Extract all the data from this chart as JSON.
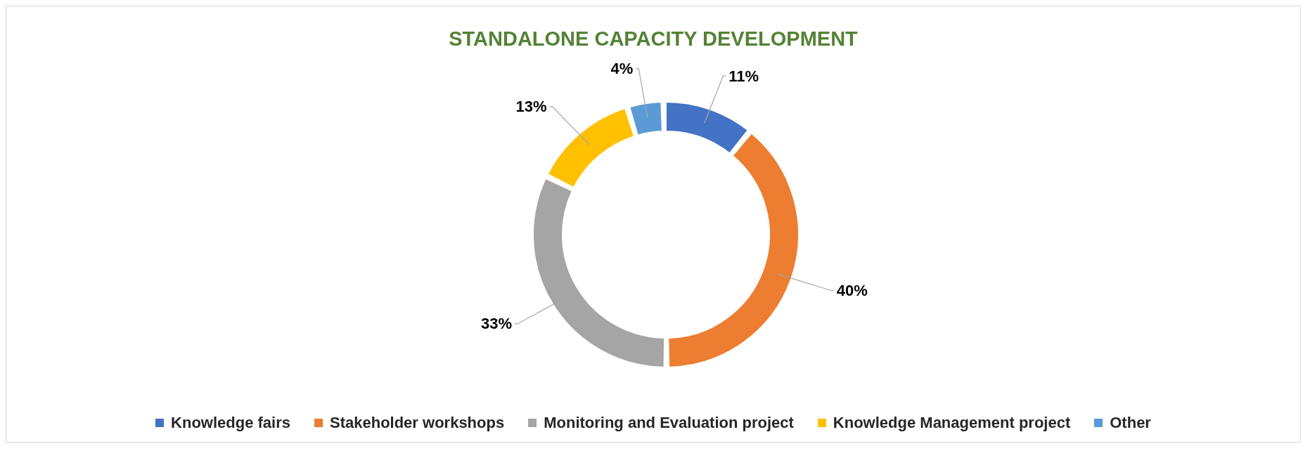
{
  "chart_data": {
    "type": "donut",
    "title": "STANDALONE CAPACITY DEVELOPMENT",
    "categories": [
      "Knowledge fairs",
      "Stakeholder workshops",
      "Monitoring and Evaluation project",
      "Knowledge Management project",
      "Other"
    ],
    "values": [
      11,
      40,
      33,
      13,
      4
    ],
    "value_labels": [
      "11%",
      "40%",
      "33%",
      "13%",
      "4%"
    ],
    "colors": [
      "#4472c4",
      "#ed7d31",
      "#a5a5a5",
      "#ffc000",
      "#5b9bd5"
    ],
    "legend": "bottom"
  }
}
